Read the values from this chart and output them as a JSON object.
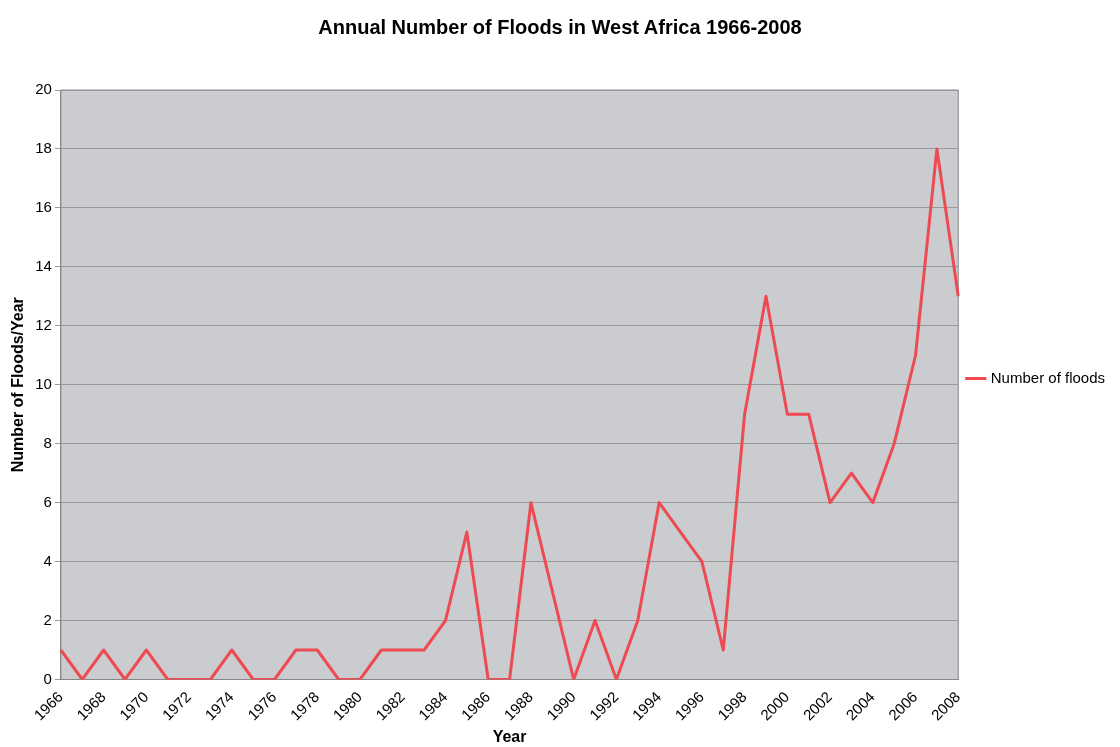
{
  "chart_data": {
    "type": "line",
    "title": "Annual Number of Floods in West Africa 1966-2008",
    "xlabel": "Year",
    "ylabel": "Number of Floods/Year",
    "categories": [
      "1966",
      null,
      "1968",
      null,
      "1970",
      null,
      "1972",
      null,
      "1974",
      null,
      "1976",
      null,
      "1978",
      null,
      "1980",
      null,
      "1982",
      null,
      "1984",
      null,
      "1986",
      null,
      "1988",
      null,
      "1990",
      null,
      "1992",
      null,
      "1994",
      null,
      "1996",
      null,
      "1998",
      null,
      "2000",
      null,
      "2002",
      null,
      "2004",
      null,
      "2006",
      null,
      "2008"
    ],
    "series": [
      {
        "name": "Number of floods",
        "color": "#ee4a52",
        "values": [
          1,
          0,
          1,
          0,
          1,
          0,
          0,
          0,
          1,
          0,
          0,
          1,
          1,
          0,
          0,
          1,
          1,
          1,
          2,
          5,
          0,
          0,
          6,
          3,
          0,
          2,
          0,
          2,
          6,
          5,
          4,
          1,
          9,
          13,
          9,
          9,
          6,
          7,
          6,
          8,
          11,
          18,
          13
        ]
      }
    ],
    "ylim": [
      0,
      20
    ],
    "yticks": [
      0,
      2,
      4,
      6,
      8,
      10,
      12,
      14,
      16,
      18,
      20
    ],
    "grid": "y",
    "legend": "right",
    "marker": "none",
    "line_style": "solid"
  }
}
